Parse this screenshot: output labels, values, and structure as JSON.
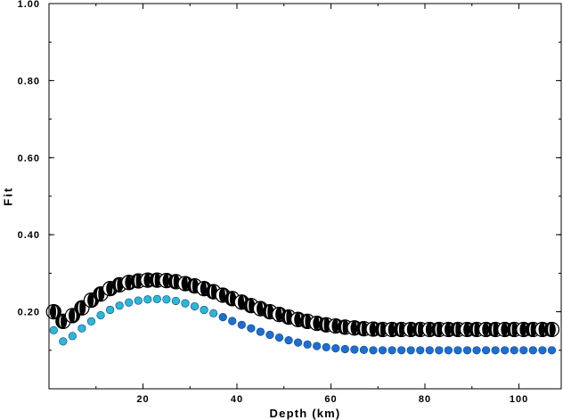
{
  "chart_data": {
    "type": "scatter",
    "title": "",
    "xlabel": "Depth (km)",
    "ylabel": "Fit",
    "xlim": [
      0,
      109
    ],
    "ylim": [
      0.0,
      1.0
    ],
    "xticks": [
      20,
      40,
      60,
      80,
      100
    ],
    "yticks": [
      0.2,
      0.4,
      0.6,
      0.8,
      1.0
    ],
    "ytick_labels": [
      "0.20",
      "0.40",
      "0.60",
      "0.80",
      "1.00"
    ],
    "grid": false,
    "series": [
      {
        "marker": "focal-mechanism-circle",
        "colors": {
          "fill": "#000000",
          "stroke": "#000000",
          "light": "#ffffff"
        },
        "points": [
          {
            "x": 1,
            "y": 0.2
          },
          {
            "x": 3,
            "y": 0.175
          },
          {
            "x": 5,
            "y": 0.19
          },
          {
            "x": 7,
            "y": 0.21
          },
          {
            "x": 9,
            "y": 0.23
          },
          {
            "x": 11,
            "y": 0.246
          },
          {
            "x": 13,
            "y": 0.26
          },
          {
            "x": 15,
            "y": 0.27
          },
          {
            "x": 17,
            "y": 0.276
          },
          {
            "x": 19,
            "y": 0.28
          },
          {
            "x": 21,
            "y": 0.282
          },
          {
            "x": 23,
            "y": 0.282
          },
          {
            "x": 25,
            "y": 0.281
          },
          {
            "x": 27,
            "y": 0.278
          },
          {
            "x": 29,
            "y": 0.273
          },
          {
            "x": 31,
            "y": 0.267
          },
          {
            "x": 33,
            "y": 0.26
          },
          {
            "x": 35,
            "y": 0.252
          },
          {
            "x": 37,
            "y": 0.243
          },
          {
            "x": 39,
            "y": 0.234
          },
          {
            "x": 41,
            "y": 0.225
          },
          {
            "x": 43,
            "y": 0.216
          },
          {
            "x": 45,
            "y": 0.208
          },
          {
            "x": 47,
            "y": 0.2
          },
          {
            "x": 49,
            "y": 0.193
          },
          {
            "x": 51,
            "y": 0.186
          },
          {
            "x": 53,
            "y": 0.18
          },
          {
            "x": 55,
            "y": 0.175
          },
          {
            "x": 57,
            "y": 0.17
          },
          {
            "x": 59,
            "y": 0.166
          },
          {
            "x": 61,
            "y": 0.163
          },
          {
            "x": 63,
            "y": 0.16
          },
          {
            "x": 65,
            "y": 0.158
          },
          {
            "x": 67,
            "y": 0.156
          },
          {
            "x": 69,
            "y": 0.155
          },
          {
            "x": 71,
            "y": 0.154
          },
          {
            "x": 73,
            "y": 0.154
          },
          {
            "x": 75,
            "y": 0.154
          },
          {
            "x": 77,
            "y": 0.154
          },
          {
            "x": 79,
            "y": 0.154
          },
          {
            "x": 81,
            "y": 0.154
          },
          {
            "x": 83,
            "y": 0.154
          },
          {
            "x": 85,
            "y": 0.154
          },
          {
            "x": 87,
            "y": 0.154
          },
          {
            "x": 89,
            "y": 0.154
          },
          {
            "x": 91,
            "y": 0.154
          },
          {
            "x": 93,
            "y": 0.154
          },
          {
            "x": 95,
            "y": 0.154
          },
          {
            "x": 97,
            "y": 0.154
          },
          {
            "x": 99,
            "y": 0.154
          },
          {
            "x": 101,
            "y": 0.154
          },
          {
            "x": 103,
            "y": 0.154
          },
          {
            "x": 105,
            "y": 0.154
          },
          {
            "x": 107,
            "y": 0.154
          }
        ]
      },
      {
        "marker": "dot",
        "colors": {
          "early": "#2bb8d4",
          "late": "#1c6fd1",
          "stroke": "#0a3f8a"
        },
        "points": [
          {
            "x": 1,
            "y": 0.152
          },
          {
            "x": 3,
            "y": 0.123
          },
          {
            "x": 5,
            "y": 0.137
          },
          {
            "x": 7,
            "y": 0.157
          },
          {
            "x": 9,
            "y": 0.175
          },
          {
            "x": 11,
            "y": 0.191
          },
          {
            "x": 13,
            "y": 0.205
          },
          {
            "x": 15,
            "y": 0.216
          },
          {
            "x": 17,
            "y": 0.224
          },
          {
            "x": 19,
            "y": 0.229
          },
          {
            "x": 21,
            "y": 0.232
          },
          {
            "x": 23,
            "y": 0.233
          },
          {
            "x": 25,
            "y": 0.232
          },
          {
            "x": 27,
            "y": 0.228
          },
          {
            "x": 29,
            "y": 0.222
          },
          {
            "x": 31,
            "y": 0.214
          },
          {
            "x": 33,
            "y": 0.205
          },
          {
            "x": 35,
            "y": 0.196
          },
          {
            "x": 37,
            "y": 0.186
          },
          {
            "x": 39,
            "y": 0.176
          },
          {
            "x": 41,
            "y": 0.166
          },
          {
            "x": 43,
            "y": 0.157
          },
          {
            "x": 45,
            "y": 0.148
          },
          {
            "x": 47,
            "y": 0.14
          },
          {
            "x": 49,
            "y": 0.133
          },
          {
            "x": 51,
            "y": 0.126
          },
          {
            "x": 53,
            "y": 0.12
          },
          {
            "x": 55,
            "y": 0.115
          },
          {
            "x": 57,
            "y": 0.111
          },
          {
            "x": 59,
            "y": 0.108
          },
          {
            "x": 61,
            "y": 0.105
          },
          {
            "x": 63,
            "y": 0.103
          },
          {
            "x": 65,
            "y": 0.102
          },
          {
            "x": 67,
            "y": 0.101
          },
          {
            "x": 69,
            "y": 0.1
          },
          {
            "x": 71,
            "y": 0.1
          },
          {
            "x": 73,
            "y": 0.1
          },
          {
            "x": 75,
            "y": 0.1
          },
          {
            "x": 77,
            "y": 0.1
          },
          {
            "x": 79,
            "y": 0.1
          },
          {
            "x": 81,
            "y": 0.1
          },
          {
            "x": 83,
            "y": 0.1
          },
          {
            "x": 85,
            "y": 0.1
          },
          {
            "x": 87,
            "y": 0.1
          },
          {
            "x": 89,
            "y": 0.1
          },
          {
            "x": 91,
            "y": 0.1
          },
          {
            "x": 93,
            "y": 0.1
          },
          {
            "x": 95,
            "y": 0.1
          },
          {
            "x": 97,
            "y": 0.1
          },
          {
            "x": 99,
            "y": 0.1
          },
          {
            "x": 101,
            "y": 0.1
          },
          {
            "x": 103,
            "y": 0.1
          },
          {
            "x": 105,
            "y": 0.1
          },
          {
            "x": 107,
            "y": 0.1
          }
        ]
      }
    ]
  }
}
